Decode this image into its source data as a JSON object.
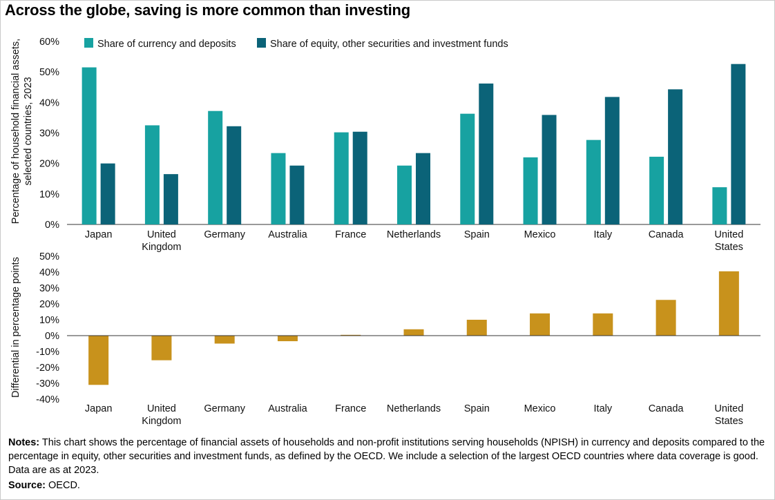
{
  "title": "Across the globe, saving is more common than investing",
  "colors": {
    "currency": "#17a2a1",
    "equity": "#0b6378",
    "differential": "#c8921c",
    "axis": "#333333"
  },
  "chart_data": [
    {
      "type": "bar",
      "categories": [
        [
          "Japan"
        ],
        [
          "United",
          "Kingdom"
        ],
        [
          "Germany"
        ],
        [
          "Australia"
        ],
        [
          "France"
        ],
        [
          "Netherlands"
        ],
        [
          "Spain"
        ],
        [
          "Mexico"
        ],
        [
          "Italy"
        ],
        [
          "Canada"
        ],
        [
          "United",
          "States"
        ]
      ],
      "series": [
        {
          "name": "Share of currency and deposits",
          "values": [
            51.5,
            32.5,
            37.2,
            23.4,
            30.2,
            19.3,
            36.3,
            22.0,
            27.7,
            22.2,
            12.2
          ]
        },
        {
          "name": "Share of equity, other securities and investment funds",
          "values": [
            20.0,
            16.5,
            32.2,
            19.3,
            30.4,
            23.4,
            46.2,
            35.9,
            41.8,
            44.3,
            52.6
          ]
        }
      ],
      "ylabel": "Percentage of household financial assets, selected countries, 2023",
      "ylim": [
        0,
        60
      ],
      "yticks": [
        "0%",
        "10%",
        "20%",
        "30%",
        "40%",
        "50%",
        "60%"
      ],
      "ytick_values": [
        0,
        10,
        20,
        30,
        40,
        50,
        60
      ],
      "legend": "top-left",
      "grid": false
    },
    {
      "type": "bar",
      "categories": [
        [
          "Japan"
        ],
        [
          "United",
          "Kingdom"
        ],
        [
          "Germany"
        ],
        [
          "Australia"
        ],
        [
          "France"
        ],
        [
          "Netherlands"
        ],
        [
          "Spain"
        ],
        [
          "Mexico"
        ],
        [
          "Italy"
        ],
        [
          "Canada"
        ],
        [
          "United",
          "States"
        ]
      ],
      "values": [
        -31,
        -15.5,
        -5,
        -3.5,
        0.5,
        4,
        10,
        14,
        14,
        22.5,
        40.5
      ],
      "ylabel": "Differential in percentage points",
      "ylim": [
        -40,
        50
      ],
      "yticks": [
        "-40%",
        "-30%",
        "-20%",
        "-10%",
        "0%",
        "10%",
        "20%",
        "30%",
        "40%",
        "50%"
      ],
      "ytick_values": [
        -40,
        -30,
        -20,
        -10,
        0,
        10,
        20,
        30,
        40,
        50
      ],
      "grid": false
    }
  ],
  "notes": {
    "label": "Notes:",
    "text": " This chart shows the percentage of financial assets of households and non-profit institutions serving households (NPISH) in currency and deposits compared to the percentage in equity, other securities and investment funds, as defined by the OECD. We include a selection of the largest OECD countries where data coverage is good. Data are as at 2023."
  },
  "source": {
    "label": "Source:",
    "text": " OECD."
  }
}
